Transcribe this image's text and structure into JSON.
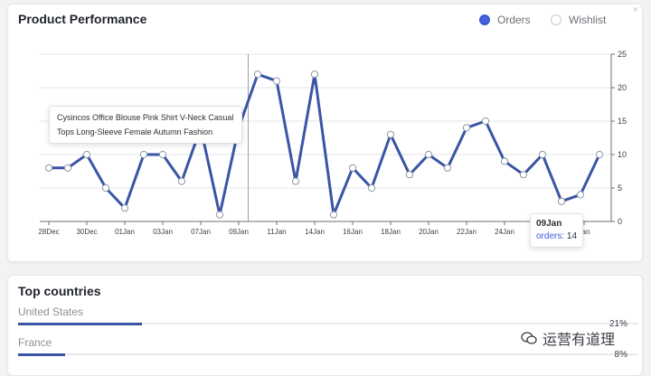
{
  "performance": {
    "title": "Product Performance",
    "legend": [
      {
        "label": "Orders",
        "selected": true
      },
      {
        "label": "Wishlist",
        "selected": false
      }
    ],
    "close_glyph": "×"
  },
  "tooltip_product": {
    "lines": [
      "Cysincos Office Blouse Pink Shirt V-Neck Casual",
      "Tops Long-Sleeve Female Autumn Fashion"
    ]
  },
  "tooltip_orders": {
    "date": "09Jan",
    "label": "orders:",
    "value": "14"
  },
  "chart_data": {
    "type": "line",
    "series": [
      {
        "name": "Orders",
        "values": [
          8,
          8,
          10,
          5,
          2,
          10,
          10,
          6,
          14,
          1,
          14,
          22,
          21,
          6,
          22,
          1,
          8,
          5,
          13,
          7,
          10,
          8,
          14,
          15,
          9,
          7,
          10,
          3,
          4,
          10
        ]
      }
    ],
    "x_tick_labels": [
      "28Dec",
      "30Dec",
      "01Jan",
      "03Jan",
      "07Jan",
      "09Jan",
      "11Jan",
      "14Jan",
      "16Jan",
      "18Jan",
      "20Jan",
      "22Jan",
      "24Jan",
      "Jan"
    ],
    "y_ticks": [
      0,
      5,
      10,
      15,
      20,
      25
    ],
    "ylim": [
      0,
      25
    ],
    "grid": true,
    "line_color": "#3a55a5",
    "crosshair_index": 10.5
  },
  "countries": {
    "title": "Top countries",
    "items": [
      {
        "name": "United States",
        "pct_label": "21%",
        "pct": 21
      },
      {
        "name": "France",
        "pct_label": "8%",
        "pct": 8
      }
    ]
  },
  "watermark": {
    "text": "运营有道理"
  },
  "colors": {
    "accent": "#3d5bd9",
    "bar": "#3a55a5"
  }
}
